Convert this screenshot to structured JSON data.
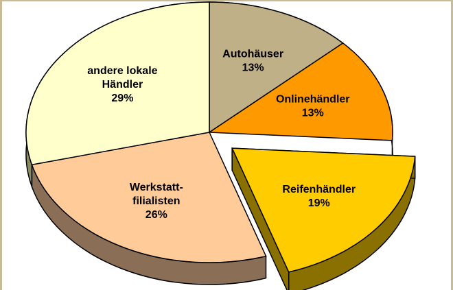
{
  "chart_data": {
    "type": "pie",
    "title": "",
    "slices": [
      {
        "lines": [
          "Autohäuser"
        ],
        "value": 13,
        "value_label": "13%",
        "color": "#c0b087",
        "side": "#7a6a45"
      },
      {
        "lines": [
          "Onlinehändler"
        ],
        "value": 13,
        "value_label": "13%",
        "color": "#ff9900",
        "side": "#7a4a00"
      },
      {
        "lines": [
          "Reifenhändler"
        ],
        "value": 19,
        "value_label": "19%",
        "color": "#ffcc00",
        "side": "#8a7000",
        "exploded": true
      },
      {
        "lines": [
          "Werkstatt-",
          "filialisten"
        ],
        "value": 26,
        "value_label": "26%",
        "color": "#ffcc99",
        "side": "#8a6e55"
      },
      {
        "lines": [
          "andere lokale",
          "Händler"
        ],
        "value": 29,
        "value_label": "29%",
        "color": "#ffffcc",
        "side": "#8a8a60"
      }
    ]
  }
}
